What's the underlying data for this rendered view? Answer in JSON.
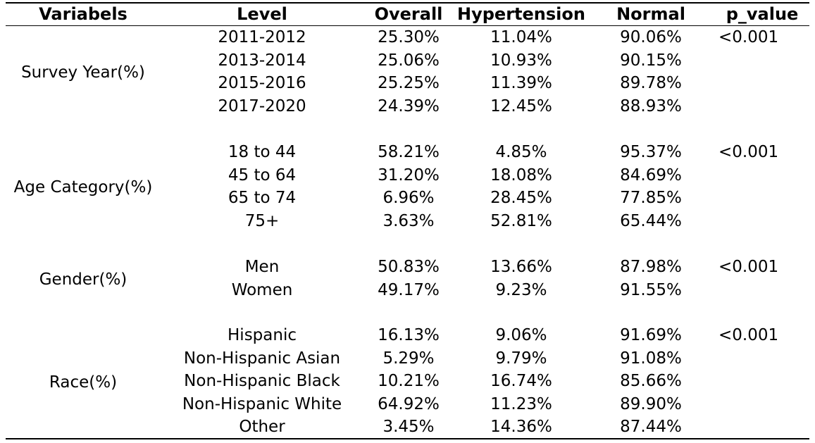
{
  "headers": {
    "variables": "Variabels",
    "level": "Level",
    "overall": "Overall",
    "hypertension": "Hypertension",
    "normal": "Normal",
    "p_value": "p_value"
  },
  "groups": [
    {
      "variable": "Survey Year(%)",
      "p_value": "<0.001",
      "rows": [
        {
          "level": "2011-2012",
          "overall": "25.30%",
          "hypertension": "11.04%",
          "normal": "90.06%"
        },
        {
          "level": "2013-2014",
          "overall": "25.06%",
          "hypertension": "10.93%",
          "normal": "90.15%"
        },
        {
          "level": "2015-2016",
          "overall": "25.25%",
          "hypertension": "11.39%",
          "normal": "89.78%"
        },
        {
          "level": "2017-2020",
          "overall": "24.39%",
          "hypertension": "12.45%",
          "normal": "88.93%"
        }
      ]
    },
    {
      "variable": "Age Category(%)",
      "p_value": "<0.001",
      "rows": [
        {
          "level": "18 to 44",
          "overall": "58.21%",
          "hypertension": "4.85%",
          "normal": "95.37%"
        },
        {
          "level": "45 to 64",
          "overall": "31.20%",
          "hypertension": "18.08%",
          "normal": "84.69%"
        },
        {
          "level": "65 to 74",
          "overall": "6.96%",
          "hypertension": "28.45%",
          "normal": "77.85%"
        },
        {
          "level": "75+",
          "overall": "3.63%",
          "hypertension": "52.81%",
          "normal": "65.44%"
        }
      ]
    },
    {
      "variable": "Gender(%)",
      "p_value": "<0.001",
      "rows": [
        {
          "level": "Men",
          "overall": "50.83%",
          "hypertension": "13.66%",
          "normal": "87.98%"
        },
        {
          "level": "Women",
          "overall": "49.17%",
          "hypertension": "9.23%",
          "normal": "91.55%"
        }
      ]
    },
    {
      "variable": "Race(%)",
      "p_value": "<0.001",
      "rows": [
        {
          "level": "Hispanic",
          "overall": "16.13%",
          "hypertension": "9.06%",
          "normal": "91.69%"
        },
        {
          "level": "Non-Hispanic Asian",
          "overall": "5.29%",
          "hypertension": "9.79%",
          "normal": "91.08%"
        },
        {
          "level": "Non-Hispanic Black",
          "overall": "10.21%",
          "hypertension": "16.74%",
          "normal": "85.66%"
        },
        {
          "level": "Non-Hispanic White",
          "overall": "64.92%",
          "hypertension": "11.23%",
          "normal": "89.90%"
        },
        {
          "level": "Other",
          "overall": "3.45%",
          "hypertension": "14.36%",
          "normal": "87.44%"
        }
      ]
    }
  ]
}
